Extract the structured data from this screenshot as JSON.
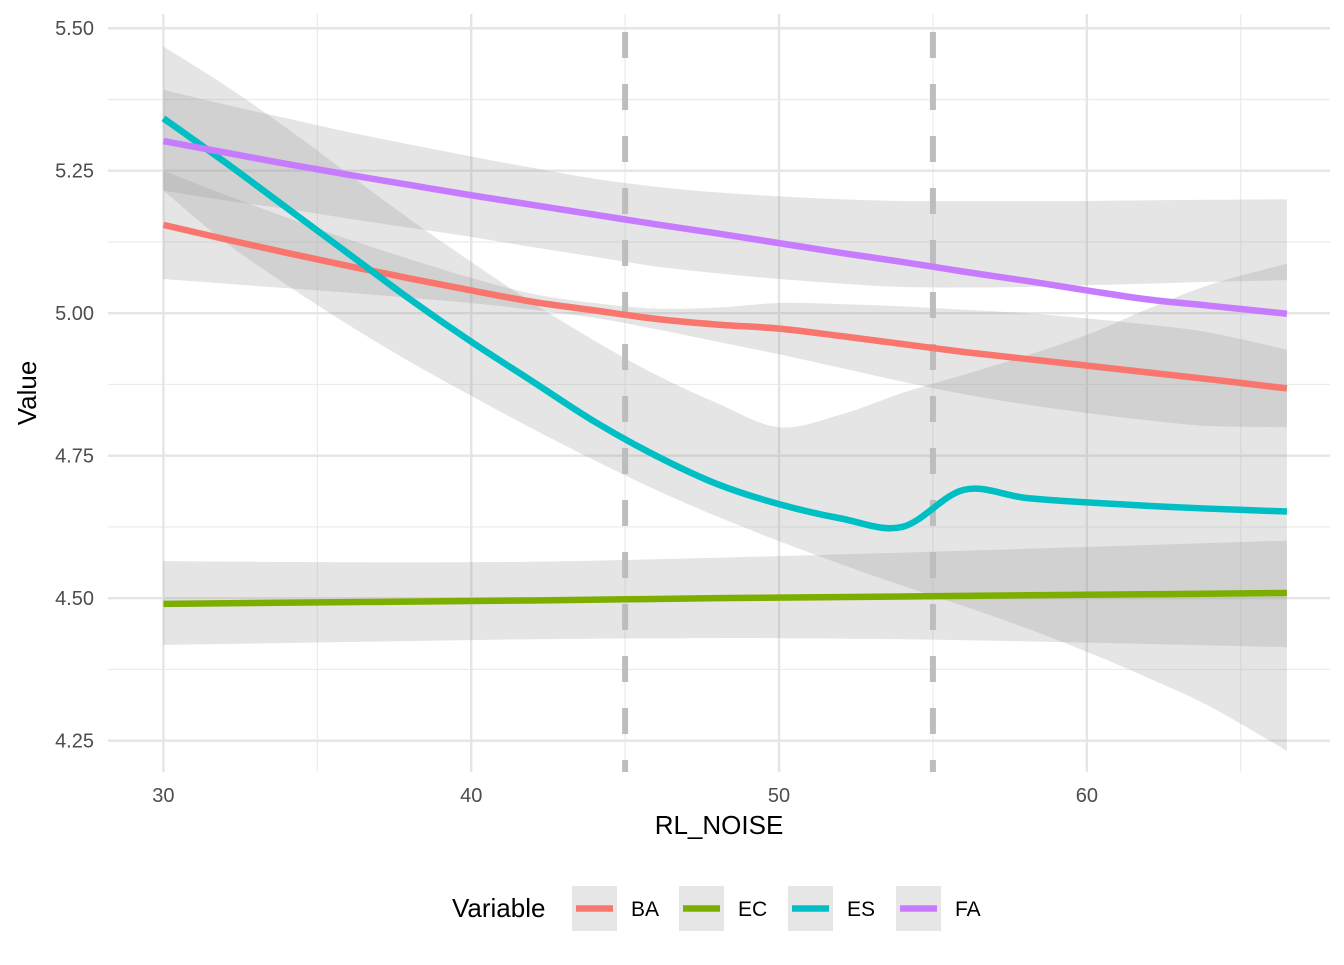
{
  "chart_data": {
    "type": "line",
    "xlabel": "RL_NOISE",
    "ylabel": "Value",
    "xlim": [
      28.2,
      67.9
    ],
    "ylim": [
      4.195,
      5.525
    ],
    "x_ticks": [
      30,
      40,
      50,
      60
    ],
    "x_tick_labels": [
      "30",
      "40",
      "50",
      "60"
    ],
    "x_minor_ticks": [
      35,
      45,
      55,
      65
    ],
    "y_ticks": [
      4.25,
      4.5,
      4.75,
      5.0,
      5.25,
      5.5
    ],
    "y_tick_labels": [
      "4.25",
      "4.50",
      "4.75",
      "5.00",
      "5.25",
      "5.50"
    ],
    "y_minor_ticks": [
      4.375,
      4.625,
      4.875,
      5.125,
      5.375
    ],
    "grid": true,
    "vlines": [
      {
        "x": 45,
        "style": "dashed",
        "color": "#bdbdbd"
      },
      {
        "x": 55,
        "style": "dashed",
        "color": "#bdbdbd"
      }
    ],
    "legend": {
      "title": "Variable",
      "position": "bottom"
    },
    "ribbon_color": "#999999",
    "ribbon_opacity": 0.25,
    "series": [
      {
        "name": "BA",
        "color": "#F8766D",
        "x": [
          30,
          32,
          34,
          36,
          38,
          40,
          42,
          44,
          46,
          48,
          50,
          52,
          54,
          56,
          58,
          60,
          62,
          64,
          66.5
        ],
        "y": [
          5.155,
          5.13,
          5.106,
          5.083,
          5.061,
          5.04,
          5.02,
          5.005,
          4.99,
          4.98,
          4.973,
          4.96,
          4.946,
          4.932,
          4.92,
          4.908,
          4.896,
          4.884,
          4.868
        ],
        "lower": [
          5.06,
          5.052,
          5.044,
          5.036,
          5.027,
          5.018,
          5.006,
          4.992,
          4.972,
          4.95,
          4.928,
          4.904,
          4.88,
          4.858,
          4.84,
          4.825,
          4.812,
          4.802,
          4.8
        ],
        "upper": [
          5.25,
          5.208,
          5.168,
          5.13,
          5.095,
          5.062,
          5.034,
          5.018,
          5.008,
          5.01,
          5.018,
          5.016,
          5.012,
          5.006,
          5.0,
          4.991,
          4.98,
          4.966,
          4.936
        ]
      },
      {
        "name": "EC",
        "color": "#7CAE00",
        "x": [
          30,
          36,
          42,
          48,
          54,
          60,
          66.5
        ],
        "y": [
          4.49,
          4.493,
          4.496,
          4.5,
          4.503,
          4.506,
          4.509
        ],
        "lower": [
          4.418,
          4.423,
          4.428,
          4.43,
          4.428,
          4.422,
          4.414
        ],
        "upper": [
          4.565,
          4.563,
          4.564,
          4.571,
          4.58,
          4.59,
          4.601
        ]
      },
      {
        "name": "ES",
        "color": "#00BFC4",
        "x": [
          30,
          32,
          34,
          36,
          38,
          40,
          42,
          44,
          46,
          48,
          50,
          52,
          54,
          56,
          58,
          60,
          62,
          64,
          66.5
        ],
        "y": [
          5.342,
          5.265,
          5.185,
          5.105,
          5.025,
          4.95,
          4.88,
          4.81,
          4.75,
          4.7,
          4.665,
          4.64,
          4.625,
          4.69,
          4.676,
          4.668,
          4.662,
          4.657,
          4.652
        ],
        "lower": [
          5.215,
          5.125,
          5.05,
          4.98,
          4.915,
          4.855,
          4.797,
          4.742,
          4.69,
          4.643,
          4.6,
          4.56,
          4.522,
          4.486,
          4.448,
          4.406,
          4.36,
          4.31,
          4.232
        ],
        "upper": [
          5.468,
          5.4,
          5.325,
          5.245,
          5.165,
          5.09,
          5.018,
          4.952,
          4.892,
          4.842,
          4.8,
          4.822,
          4.86,
          4.892,
          4.925,
          4.962,
          5.008,
          5.05,
          5.087
        ]
      },
      {
        "name": "FA",
        "color": "#C77CFF",
        "x": [
          30,
          32,
          34,
          36,
          38,
          40,
          42,
          44,
          46,
          48,
          50,
          52,
          54,
          56,
          58,
          60,
          62,
          64,
          66.5
        ],
        "y": [
          5.302,
          5.282,
          5.262,
          5.243,
          5.225,
          5.207,
          5.19,
          5.173,
          5.156,
          5.14,
          5.123,
          5.106,
          5.09,
          5.073,
          5.057,
          5.04,
          5.024,
          5.013,
          4.999
        ],
        "lower": [
          5.215,
          5.198,
          5.183,
          5.166,
          5.15,
          5.134,
          5.116,
          5.099,
          5.082,
          5.07,
          5.06,
          5.052,
          5.046,
          5.045,
          5.046,
          5.049,
          5.052,
          5.055,
          5.058
        ],
        "upper": [
          5.392,
          5.366,
          5.342,
          5.318,
          5.296,
          5.275,
          5.255,
          5.236,
          5.222,
          5.212,
          5.205,
          5.2,
          5.197,
          5.197,
          5.197,
          5.197,
          5.198,
          5.199,
          5.2
        ]
      }
    ]
  }
}
